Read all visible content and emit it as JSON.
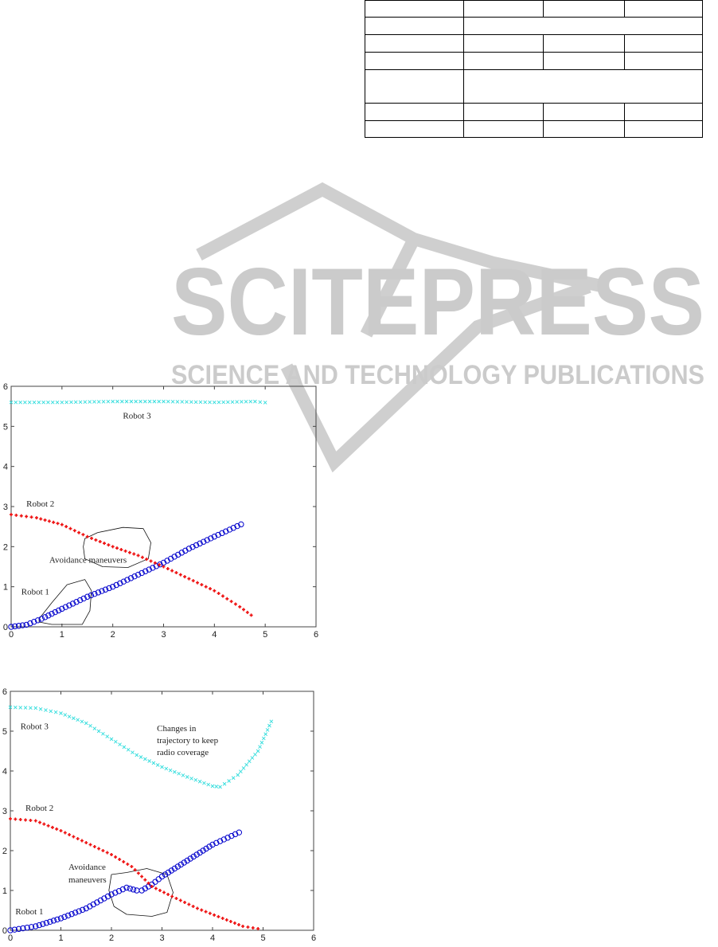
{
  "watermark": {
    "brand": "SCITEPRESS",
    "tagline": "SCIENCE AND TECHNOLOGY PUBLICATIONS",
    "color": "#c8c8c8"
  },
  "table": {
    "rows": [
      [
        "",
        "",
        "",
        ""
      ],
      [
        ""
      ],
      [
        "",
        "",
        "",
        ""
      ],
      [
        "",
        "",
        "",
        ""
      ],
      [
        ""
      ],
      [
        "",
        "",
        "",
        ""
      ],
      [
        "",
        "",
        "",
        ""
      ]
    ]
  },
  "chart_data": [
    {
      "type": "scatter",
      "xlim": [
        0,
        6
      ],
      "ylim": [
        0,
        6
      ],
      "xticks": [
        "0",
        "1",
        "2",
        "3",
        "4",
        "5",
        "6"
      ],
      "yticks": [
        "0",
        "1",
        "2",
        "3",
        "4",
        "5",
        "6"
      ],
      "grid": false,
      "series": [
        {
          "name": "Robot 1",
          "marker": "circle",
          "color": "#0000cc",
          "x": [
            0,
            0.3,
            0.6,
            1,
            1.5,
            2,
            2.5,
            3,
            3.5,
            4,
            4.6
          ],
          "y": [
            0,
            0.05,
            0.2,
            0.45,
            0.75,
            1.0,
            1.3,
            1.6,
            1.95,
            2.25,
            2.6
          ]
        },
        {
          "name": "Robot 2",
          "marker": "plus",
          "color": "#ee1111",
          "x": [
            0,
            0.5,
            1,
            1.5,
            2,
            2.5,
            3,
            3.5,
            4,
            4.5,
            4.8
          ],
          "y": [
            2.8,
            2.72,
            2.55,
            2.25,
            2.0,
            1.78,
            1.5,
            1.2,
            0.9,
            0.5,
            0.22
          ]
        },
        {
          "name": "Robot 3",
          "marker": "x",
          "color": "#33dddd",
          "x": [
            0,
            1,
            2,
            3,
            4,
            4.8,
            5.1
          ],
          "y": [
            5.6,
            5.6,
            5.62,
            5.62,
            5.6,
            5.62,
            5.58
          ]
        }
      ],
      "annotations": [
        "Robot 3",
        "Robot 2",
        "Avoidance maneuvers",
        "Robot 1"
      ]
    },
    {
      "type": "scatter",
      "xlim": [
        0,
        6
      ],
      "ylim": [
        0,
        6
      ],
      "xticks": [
        "0",
        "1",
        "2",
        "3",
        "4",
        "5",
        "6"
      ],
      "yticks": [
        "0",
        "1",
        "2",
        "3",
        "4",
        "5",
        "6"
      ],
      "grid": false,
      "series": [
        {
          "name": "Robot 1",
          "marker": "circle",
          "color": "#0000cc",
          "x": [
            0,
            0.5,
            1,
            1.5,
            2,
            2.3,
            2.5,
            2.6,
            2.8,
            3,
            3.5,
            4,
            4.6
          ],
          "y": [
            0,
            0.1,
            0.3,
            0.55,
            0.9,
            1.07,
            1.0,
            1.0,
            1.15,
            1.35,
            1.75,
            2.15,
            2.5
          ]
        },
        {
          "name": "Robot 2",
          "marker": "plus",
          "color": "#ee1111",
          "x": [
            0,
            0.5,
            1,
            1.5,
            2,
            2.4,
            2.6,
            2.8,
            3.2,
            3.7,
            4.2,
            4.6,
            5
          ],
          "y": [
            2.8,
            2.75,
            2.5,
            2.2,
            1.9,
            1.6,
            1.35,
            1.1,
            0.85,
            0.55,
            0.3,
            0.1,
            0.02
          ]
        },
        {
          "name": "Robot 3",
          "marker": "x",
          "color": "#33dddd",
          "x": [
            0,
            0.5,
            1,
            1.5,
            2,
            2.5,
            3,
            3.5,
            4,
            4.15,
            4.5,
            4.9,
            5.2
          ],
          "y": [
            5.6,
            5.58,
            5.45,
            5.2,
            4.8,
            4.4,
            4.1,
            3.85,
            3.62,
            3.6,
            3.9,
            4.5,
            5.35
          ]
        }
      ],
      "annotations": [
        "Robot 3",
        "Changes in",
        "trajectory to keep",
        "radio coverage",
        "Robot 2",
        "Avoidance",
        "maneuvers",
        "Robot 1"
      ]
    }
  ]
}
